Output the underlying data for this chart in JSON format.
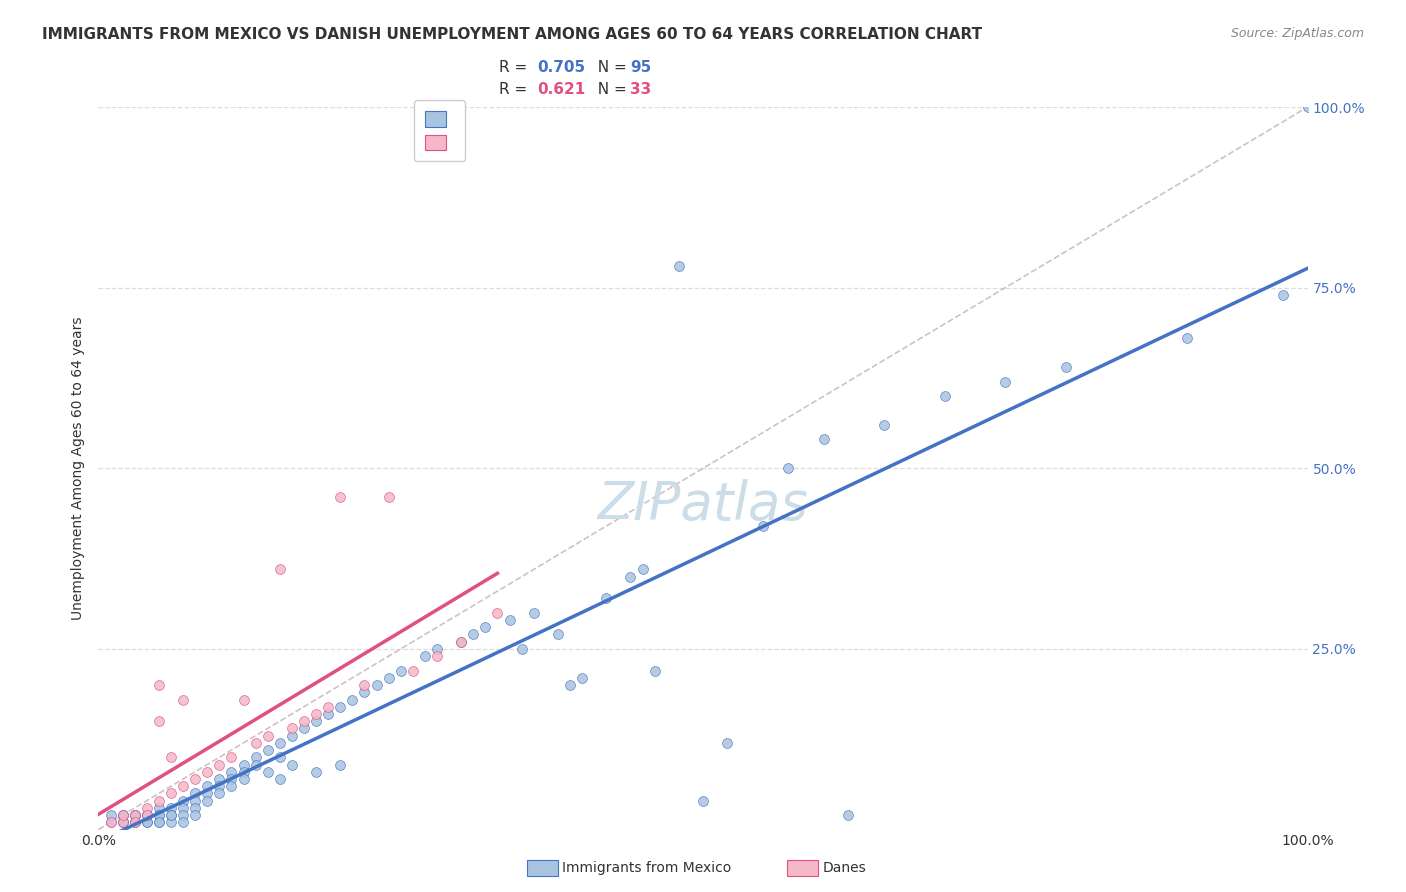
{
  "title": "IMMIGRANTS FROM MEXICO VS DANISH UNEMPLOYMENT AMONG AGES 60 TO 64 YEARS CORRELATION CHART",
  "source": "Source: ZipAtlas.com",
  "ylabel": "Unemployment Among Ages 60 to 64 years",
  "blue_scatter_x": [
    0.01,
    0.01,
    0.02,
    0.02,
    0.02,
    0.02,
    0.02,
    0.03,
    0.03,
    0.03,
    0.03,
    0.03,
    0.04,
    0.04,
    0.04,
    0.04,
    0.04,
    0.05,
    0.05,
    0.05,
    0.05,
    0.05,
    0.06,
    0.06,
    0.06,
    0.06,
    0.07,
    0.07,
    0.07,
    0.07,
    0.08,
    0.08,
    0.08,
    0.08,
    0.09,
    0.09,
    0.09,
    0.1,
    0.1,
    0.1,
    0.11,
    0.11,
    0.11,
    0.12,
    0.12,
    0.12,
    0.13,
    0.13,
    0.14,
    0.14,
    0.15,
    0.15,
    0.15,
    0.16,
    0.16,
    0.17,
    0.18,
    0.18,
    0.19,
    0.2,
    0.2,
    0.21,
    0.22,
    0.23,
    0.24,
    0.25,
    0.27,
    0.28,
    0.3,
    0.31,
    0.32,
    0.34,
    0.35,
    0.36,
    0.38,
    0.39,
    0.4,
    0.42,
    0.44,
    0.45,
    0.46,
    0.48,
    0.5,
    0.52,
    0.55,
    0.57,
    0.6,
    0.62,
    0.65,
    0.7,
    0.75,
    0.8,
    0.9,
    0.98,
    1.0
  ],
  "blue_scatter_y": [
    0.01,
    0.02,
    0.01,
    0.02,
    0.01,
    0.02,
    0.01,
    0.02,
    0.01,
    0.02,
    0.01,
    0.02,
    0.02,
    0.01,
    0.02,
    0.01,
    0.02,
    0.03,
    0.02,
    0.01,
    0.02,
    0.01,
    0.03,
    0.02,
    0.01,
    0.02,
    0.04,
    0.03,
    0.02,
    0.01,
    0.05,
    0.04,
    0.03,
    0.02,
    0.06,
    0.05,
    0.04,
    0.07,
    0.06,
    0.05,
    0.08,
    0.07,
    0.06,
    0.09,
    0.08,
    0.07,
    0.1,
    0.09,
    0.11,
    0.08,
    0.12,
    0.1,
    0.07,
    0.13,
    0.09,
    0.14,
    0.15,
    0.08,
    0.16,
    0.17,
    0.09,
    0.18,
    0.19,
    0.2,
    0.21,
    0.22,
    0.24,
    0.25,
    0.26,
    0.27,
    0.28,
    0.29,
    0.25,
    0.3,
    0.27,
    0.2,
    0.21,
    0.32,
    0.35,
    0.36,
    0.22,
    0.78,
    0.04,
    0.12,
    0.42,
    0.5,
    0.54,
    0.02,
    0.56,
    0.6,
    0.62,
    0.64,
    0.68,
    0.74,
    1.0
  ],
  "pink_scatter_x": [
    0.01,
    0.02,
    0.02,
    0.03,
    0.03,
    0.04,
    0.04,
    0.05,
    0.05,
    0.05,
    0.06,
    0.06,
    0.07,
    0.07,
    0.08,
    0.09,
    0.1,
    0.11,
    0.12,
    0.13,
    0.14,
    0.15,
    0.16,
    0.17,
    0.18,
    0.19,
    0.2,
    0.22,
    0.24,
    0.26,
    0.28,
    0.3,
    0.33
  ],
  "pink_scatter_y": [
    0.01,
    0.01,
    0.02,
    0.02,
    0.01,
    0.03,
    0.02,
    0.04,
    0.15,
    0.2,
    0.05,
    0.1,
    0.06,
    0.18,
    0.07,
    0.08,
    0.09,
    0.1,
    0.18,
    0.12,
    0.13,
    0.36,
    0.14,
    0.15,
    0.16,
    0.17,
    0.46,
    0.2,
    0.46,
    0.22,
    0.24,
    0.26,
    0.3
  ],
  "blue_line_color": "#4472c4",
  "pink_line_color": "#e05080",
  "diagonal_color": "#c8b0b8",
  "scatter_blue_color": "#a8c4e0",
  "scatter_pink_color": "#f4b8c8",
  "grid_color": "#dddddd",
  "background_color": "#ffffff",
  "title_fontsize": 11,
  "source_fontsize": 9,
  "watermark_color": "#ccdde8",
  "watermark_fontsize": 38,
  "R_blue": "0.705",
  "N_blue": "95",
  "R_pink": "0.621",
  "N_pink": "33",
  "legend_label_blue": "Immigrants from Mexico",
  "legend_label_pink": "Danes"
}
